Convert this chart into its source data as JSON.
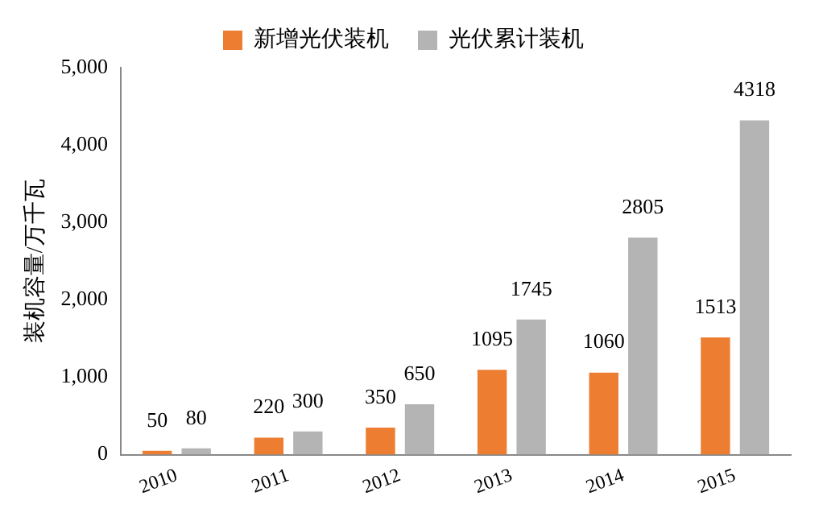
{
  "chart_data": {
    "type": "bar",
    "ylabel": "装机容量/万千瓦",
    "categories": [
      "2010",
      "2011",
      "2012",
      "2013",
      "2014",
      "2015"
    ],
    "series": [
      {
        "name": "新增光伏装机",
        "color": "#ed7d31",
        "values": [
          50,
          220,
          350,
          1095,
          1060,
          1513
        ]
      },
      {
        "name": "光伏累计装机",
        "color": "#b4b4b4",
        "values": [
          80,
          300,
          650,
          1745,
          2805,
          4318
        ]
      }
    ],
    "ylim": [
      0,
      5000
    ],
    "yticks": [
      0,
      {
        "value": 1000,
        "label": "1,000"
      },
      {
        "value": 2000,
        "label": "2,000"
      },
      {
        "value": 3000,
        "label": "3,000"
      },
      {
        "value": 4000,
        "label": "4,000"
      },
      {
        "value": 5000,
        "label": "5,000"
      }
    ],
    "data_labels": true,
    "legend": "top",
    "grid": false
  }
}
